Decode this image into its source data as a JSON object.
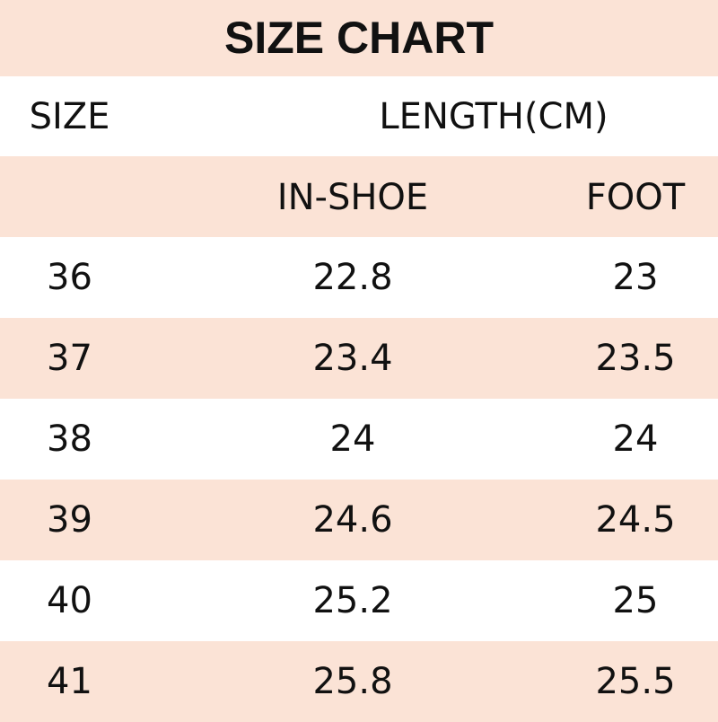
{
  "title": "SIZE CHART",
  "header": {
    "size": "SIZE",
    "length": "LENGTH(CM)",
    "in_shoe": "IN-SHOE",
    "foot": "FOOT"
  },
  "colors": {
    "band": "#fbe3d6",
    "alt": "#ffffff"
  },
  "rows": [
    {
      "size": "36",
      "in_shoe": "22.8",
      "foot": "23"
    },
    {
      "size": "37",
      "in_shoe": "23.4",
      "foot": "23.5"
    },
    {
      "size": "38",
      "in_shoe": "24",
      "foot": "24"
    },
    {
      "size": "39",
      "in_shoe": "24.6",
      "foot": "24.5"
    },
    {
      "size": "40",
      "in_shoe": "25.2",
      "foot": "25"
    },
    {
      "size": "41",
      "in_shoe": "25.8",
      "foot": "25.5"
    }
  ]
}
